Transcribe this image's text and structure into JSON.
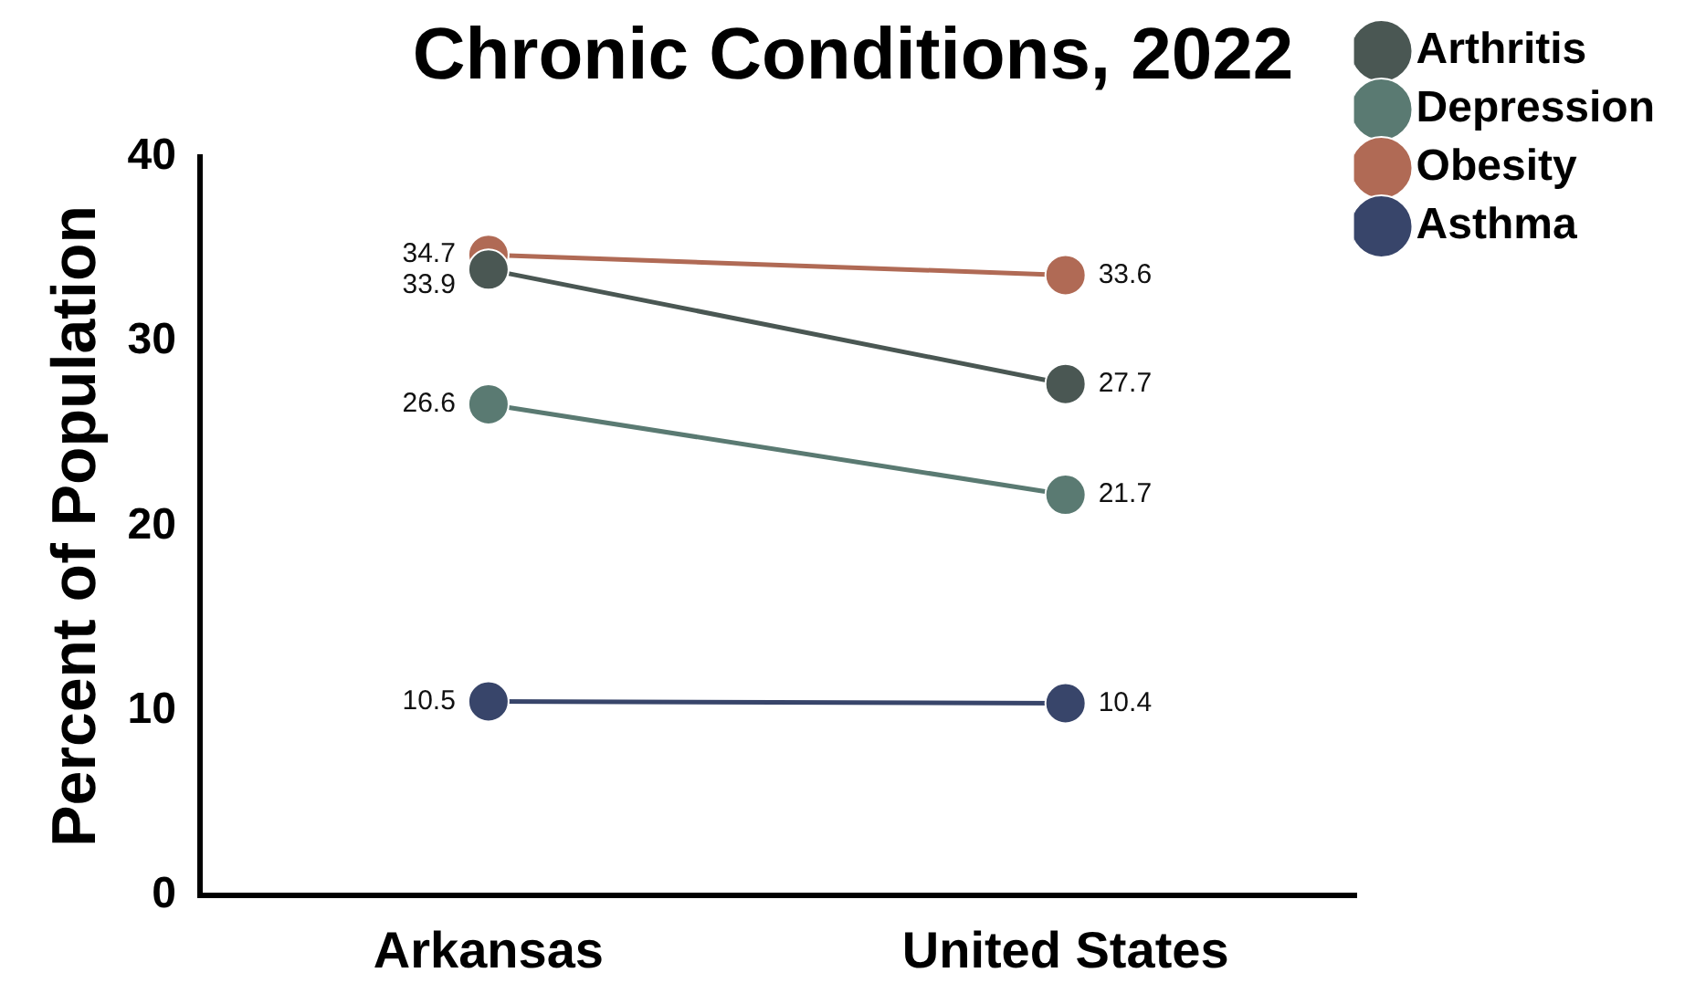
{
  "chart_data": {
    "type": "line",
    "title": "Chronic Conditions, 2022",
    "ylabel": "Percent of Population",
    "categories": [
      "Arkansas",
      "United States"
    ],
    "series": [
      {
        "name": "Arthritis",
        "color": "#4a5753",
        "values": [
          33.9,
          27.7
        ]
      },
      {
        "name": "Depression",
        "color": "#5a7a72",
        "values": [
          26.6,
          21.7
        ]
      },
      {
        "name": "Obesity",
        "color": "#b06a55",
        "values": [
          34.7,
          33.6
        ]
      },
      {
        "name": "Asthma",
        "color": "#38456a",
        "values": [
          10.5,
          10.4
        ]
      }
    ],
    "ylim": [
      0,
      40
    ],
    "yticks": [
      0,
      10,
      20,
      30,
      40
    ],
    "grid": false,
    "legend": "top right",
    "marker": "circle",
    "line_style": "solid",
    "data_labels": true
  }
}
